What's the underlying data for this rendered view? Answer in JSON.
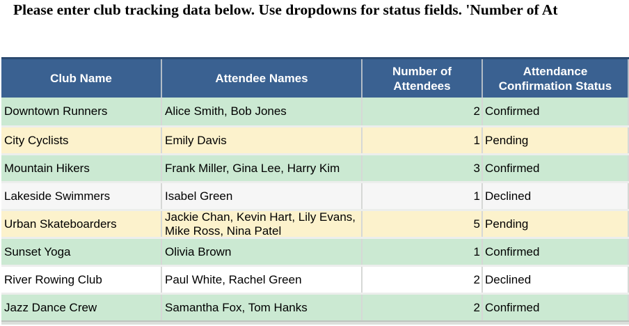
{
  "title": "Please enter club tracking data below. Use dropdowns for status fields. 'Number of At",
  "table": {
    "columns": [
      "Club Name",
      "Attendee Names",
      "Number of\nAttendees",
      "Attendance\nConfirmation Status"
    ],
    "rows": [
      {
        "club": "Downtown Runners",
        "attendees": "Alice Smith, Bob Jones",
        "count": "2",
        "status": "Confirmed",
        "fill": "green"
      },
      {
        "club": "City Cyclists",
        "attendees": "Emily Davis",
        "count": "1",
        "status": "Pending",
        "fill": "cream"
      },
      {
        "club": "Mountain Hikers",
        "attendees": "Frank Miller, Gina Lee, Harry Kim",
        "count": "3",
        "status": "Confirmed",
        "fill": "green"
      },
      {
        "club": "Lakeside Swimmers",
        "attendees": "Isabel Green",
        "count": "1",
        "status": "Declined",
        "fill": "gray"
      },
      {
        "club": "Urban Skateboarders",
        "attendees": "Jackie Chan, Kevin Hart, Lily Evans, Mike Ross, Nina Patel",
        "count": "5",
        "status": "Pending",
        "fill": "cream"
      },
      {
        "club": "Sunset Yoga",
        "attendees": "Olivia Brown",
        "count": "1",
        "status": "Confirmed",
        "fill": "green"
      },
      {
        "club": "River Rowing Club",
        "attendees": "Paul White, Rachel Green",
        "count": "2",
        "status": "Declined",
        "fill": "white"
      },
      {
        "club": "Jazz Dance Crew",
        "attendees": "Samantha Fox, Tom Hanks",
        "count": "2",
        "status": "Confirmed",
        "fill": "green"
      }
    ]
  },
  "colors": {
    "header_bg": "#3a6191",
    "header_top_border": "#2b4a70",
    "header_text": "#ffffff",
    "status_fills": {
      "green": "#cbe9d2",
      "cream": "#fcf2cc",
      "gray": "#f6f6f6",
      "white": "#ffffff"
    }
  }
}
